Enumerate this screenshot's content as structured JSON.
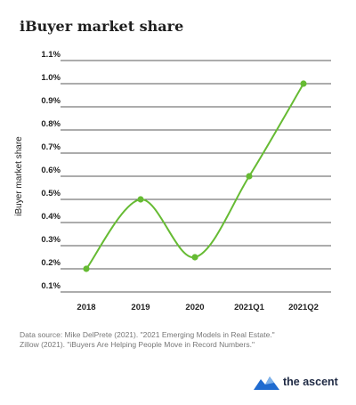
{
  "title": "iBuyer market share",
  "source_line1": "Data source: Mike DelPrete (2021). \"2021 Emerging Models in Real Estate.\"",
  "source_line2": "Zillow (2021). \"iBuyers Are Helping People Move in Record Numbers.\"",
  "logo_text": "the ascent",
  "colors": {
    "line": "#66bb33",
    "axis_text": "#222222",
    "grid": "#222222",
    "logo_blue": "#1f6bd0"
  },
  "chart_data": {
    "type": "line",
    "title": "iBuyer market share",
    "ylabel": "iBuyer market share",
    "xlabel": "",
    "categories": [
      "2018",
      "2019",
      "2020",
      "2021Q1",
      "2021Q2"
    ],
    "values": [
      0.2,
      0.5,
      0.25,
      0.6,
      1.0
    ],
    "yticks": [
      "1.1%",
      "1.0%",
      "0.9%",
      "0.8%",
      "0.7%",
      "0.6%",
      "0.5%",
      "0.4%",
      "0.3%",
      "0.2%",
      "0.1%"
    ],
    "ylim": [
      0.1,
      1.1
    ],
    "grid": true,
    "legend": "none"
  }
}
